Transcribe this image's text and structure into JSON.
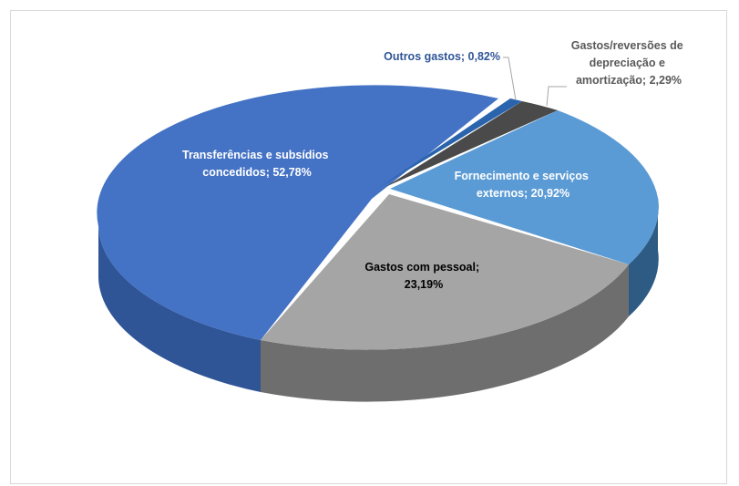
{
  "chart_data": {
    "type": "pie",
    "title": "",
    "slices": [
      {
        "label": "Outros gastos",
        "value": 0.82,
        "display": "0,82%",
        "color": "#2a64ad"
      },
      {
        "label": "Gastos/reversões de depreciação e amortização",
        "value": 2.29,
        "display": "2,29%",
        "color": "#4a4a4a"
      },
      {
        "label": "Fornecimento e serviços externos",
        "value": 20.92,
        "display": "20,92%",
        "color": "#5b9bd5"
      },
      {
        "label": "Gastos com pessoal",
        "value": 23.19,
        "display": "23,19%",
        "color": "#a5a5a5"
      },
      {
        "label": "Transferências e subsídios concedidos",
        "value": 52.78,
        "display": "52,78%",
        "color": "#4472c4"
      }
    ],
    "labels_text": {
      "outros": [
        "Outros gastos; 0,82%"
      ],
      "gastos_rev": [
        "Gastos/reversões de",
        "depreciação e",
        "amortização; 2,29%"
      ],
      "fornecimento": [
        "Fornecimento e serviços",
        "externos; 20,92%"
      ],
      "pessoal": [
        "Gastos com pessoal;",
        "23,19%"
      ],
      "transferencias": [
        "Transferências e subsídios",
        "concedidos; 52,78%"
      ]
    },
    "legend": "none",
    "style": "3d-exploded"
  }
}
